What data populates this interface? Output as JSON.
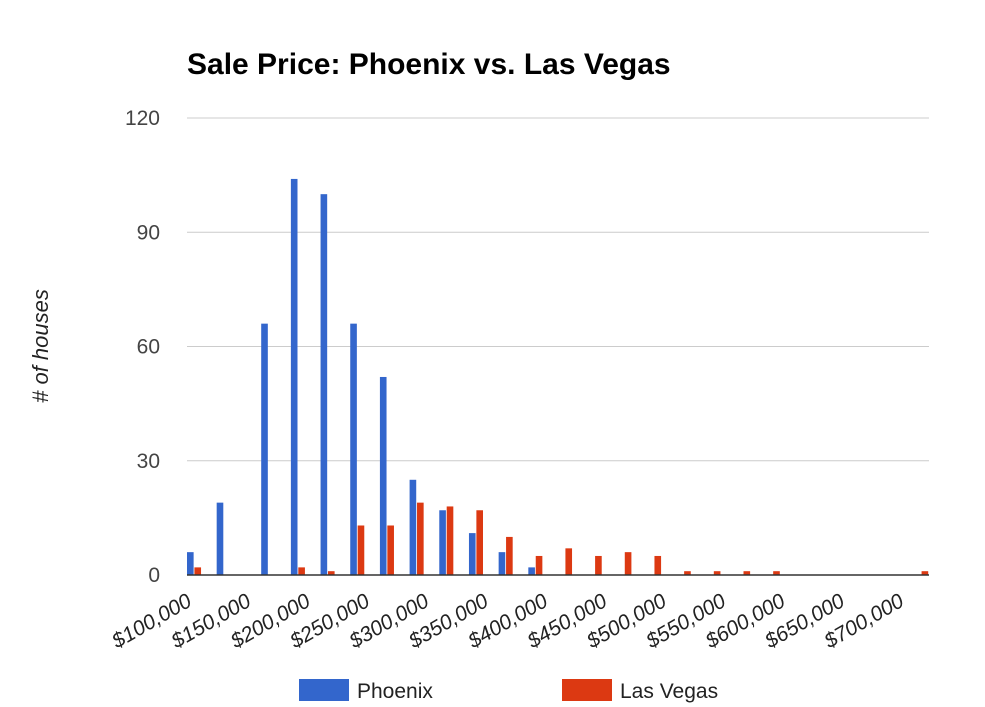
{
  "chart_data": {
    "type": "bar",
    "title": "Sale Price: Phoenix vs. Las Vegas",
    "xlabel": "",
    "ylabel": "# of houses",
    "ylim": [
      0,
      120
    ],
    "yticks": [
      0,
      30,
      60,
      90,
      120
    ],
    "xlim": [
      100000,
      725000
    ],
    "bin_width": 12500,
    "x_tick_labels": [
      "$100,000",
      "$150,000",
      "$200,000",
      "$250,000",
      "$300,000",
      "$350,000",
      "$400,000",
      "$450,000",
      "$500,000",
      "$550,000",
      "$600,000",
      "$650,000",
      "$700,000"
    ],
    "x_tick_values": [
      100000,
      150000,
      200000,
      250000,
      300000,
      350000,
      400000,
      450000,
      500000,
      550000,
      600000,
      650000,
      700000
    ],
    "bins": [
      100000,
      112500,
      125000,
      137500,
      150000,
      162500,
      175000,
      187500,
      200000,
      212500,
      225000,
      237500,
      250000,
      262500,
      275000,
      287500,
      300000,
      312500,
      325000,
      337500,
      350000,
      362500,
      375000,
      387500,
      400000,
      412500,
      425000,
      437500,
      450000,
      462500,
      475000,
      487500,
      500000,
      512500,
      525000,
      537500,
      550000,
      562500,
      575000,
      587500,
      600000,
      612500,
      625000,
      637500,
      650000,
      662500,
      675000,
      687500,
      700000,
      712500
    ],
    "grid": true,
    "legend_position": "bottom",
    "series": [
      {
        "name": "Phoenix",
        "color": "#3366cc",
        "values": [
          6,
          0,
          19,
          0,
          0,
          66,
          0,
          104,
          0,
          100,
          0,
          66,
          0,
          52,
          0,
          25,
          0,
          17,
          0,
          11,
          0,
          6,
          0,
          2,
          0,
          0,
          0,
          0,
          0,
          0,
          0,
          0,
          0,
          0,
          0,
          0,
          0,
          0,
          0,
          0,
          0,
          0,
          0,
          0,
          0,
          0,
          0,
          0,
          0,
          0
        ]
      },
      {
        "name": "Las Vegas",
        "color": "#dc3912",
        "values": [
          2,
          0,
          0,
          0,
          0,
          0,
          0,
          2,
          0,
          1,
          0,
          13,
          0,
          13,
          0,
          19,
          0,
          18,
          0,
          17,
          0,
          10,
          0,
          5,
          0,
          7,
          0,
          5,
          0,
          6,
          0,
          5,
          0,
          1,
          0,
          1,
          0,
          1,
          0,
          1,
          0,
          0,
          0,
          0,
          0,
          0,
          0,
          0,
          0,
          1
        ]
      }
    ]
  }
}
